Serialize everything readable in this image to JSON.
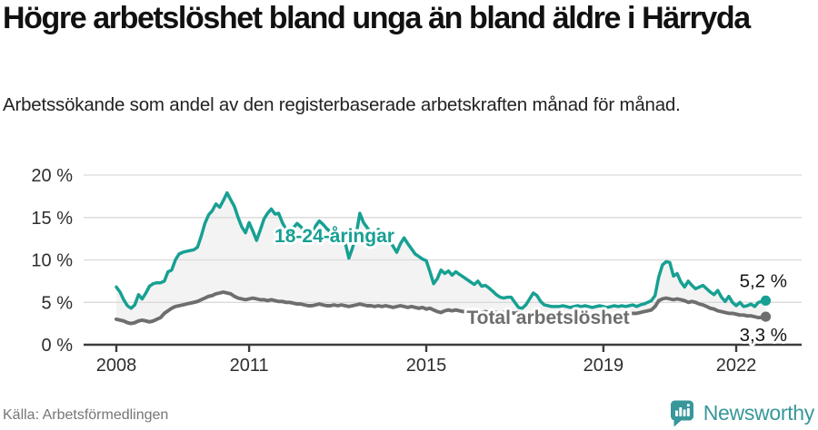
{
  "header": {
    "title": "Högre arbetslöshet bland unga än bland äldre i Härryda",
    "subtitle": "Arbetssökande som andel av den registerbaserade arbetskraften månad för månad."
  },
  "footer": {
    "source": "Källa: Arbetsförmedlingen",
    "brand": "Newsworthy",
    "logo_icon": "newsworthy-speech-bubble-bar-chart-icon"
  },
  "colors": {
    "young_line": "#17a093",
    "total_line": "#6e6e6e",
    "area_fill": "#f3f3f3",
    "grid": "#dadada",
    "axis": "#3d3d3d",
    "tick_text": "#2e2e2e",
    "value_text": "#141414",
    "brand": "#38979a"
  },
  "chart_data": {
    "type": "line",
    "title": "Högre arbetslöshet bland unga än bland äldre i Härryda",
    "subtitle": "Arbetssökande som andel av den registerbaserade arbetskraften månad för månad.",
    "frequency": "monthly",
    "x_start": "2008-01",
    "x_end": "2022-09",
    "x_tick_labels": [
      "2008",
      "2011",
      "2015",
      "2019",
      "2022"
    ],
    "x_tick_month_index": [
      0,
      36,
      84,
      132,
      168
    ],
    "y_tick_labels": [
      "0 %",
      "5 %",
      "10 %",
      "15 %",
      "20 %"
    ],
    "y_tick_values": [
      0,
      5,
      10,
      15,
      20
    ],
    "ylim": [
      0,
      20
    ],
    "unit": "%",
    "grid": "horizontal",
    "legend_position": "inline-labels",
    "series": [
      {
        "name": "18-24-åringar",
        "color_key": "young_line",
        "end_label": "5,2 %",
        "end_value": 5.2,
        "values": [
          6.8,
          6.2,
          5.3,
          4.6,
          4.3,
          4.7,
          5.9,
          5.4,
          6.1,
          6.9,
          7.2,
          7.3,
          7.3,
          7.5,
          8.6,
          8.8,
          10.0,
          10.7,
          10.9,
          11.0,
          11.1,
          11.2,
          11.5,
          12.8,
          14.3,
          15.3,
          15.8,
          16.6,
          16.2,
          17.0,
          17.9,
          17.1,
          16.3,
          15.0,
          13.9,
          13.2,
          14.4,
          13.4,
          12.3,
          13.5,
          14.8,
          15.5,
          16.0,
          15.4,
          15.5,
          14.4,
          13.6,
          13.3,
          13.8,
          14.3,
          13.9,
          13.4,
          12.9,
          12.5,
          14.0,
          14.6,
          14.2,
          13.7,
          13.3,
          13.6,
          13.4,
          12.9,
          12.1,
          10.2,
          11.4,
          13.0,
          15.5,
          14.4,
          13.8,
          13.2,
          12.9,
          13.6,
          13.2,
          12.6,
          12.4,
          11.6,
          10.9,
          11.9,
          12.6,
          11.9,
          11.3,
          10.7,
          10.4,
          10.1,
          9.9,
          8.6,
          7.2,
          7.8,
          8.8,
          8.4,
          8.7,
          8.2,
          8.6,
          8.3,
          8.0,
          7.7,
          7.4,
          7.1,
          7.5,
          6.9,
          7.0,
          6.7,
          6.3,
          5.9,
          5.6,
          5.5,
          5.6,
          5.6,
          5.0,
          4.4,
          4.3,
          4.7,
          5.4,
          6.1,
          5.8,
          5.1,
          4.7,
          4.6,
          4.5,
          4.5,
          4.5,
          4.6,
          4.5,
          4.4,
          4.5,
          4.6,
          4.5,
          4.6,
          4.5,
          4.4,
          4.5,
          4.6,
          4.5,
          4.4,
          4.5,
          4.6,
          4.5,
          4.6,
          4.5,
          4.6,
          4.7,
          4.5,
          4.7,
          4.8,
          5.0,
          5.2,
          5.8,
          8.0,
          9.4,
          9.8,
          9.7,
          8.1,
          8.4,
          7.4,
          6.8,
          7.5,
          7.0,
          6.6,
          6.8,
          7.0,
          6.6,
          6.2,
          5.9,
          6.4,
          5.6,
          5.1,
          5.7,
          5.0,
          4.6,
          5.0,
          4.5,
          4.6,
          4.8,
          4.5,
          5.0,
          5.1,
          5.2
        ]
      },
      {
        "name": "Total arbetslöshet",
        "color_key": "total_line",
        "end_label": "3,3 %",
        "end_value": 3.3,
        "values": [
          3.0,
          2.9,
          2.8,
          2.6,
          2.5,
          2.6,
          2.8,
          2.9,
          2.8,
          2.7,
          2.8,
          3.0,
          3.2,
          3.7,
          4.0,
          4.3,
          4.5,
          4.6,
          4.7,
          4.8,
          4.9,
          5.0,
          5.1,
          5.3,
          5.5,
          5.7,
          5.8,
          6.0,
          6.1,
          6.2,
          6.1,
          6.0,
          5.7,
          5.5,
          5.4,
          5.3,
          5.4,
          5.5,
          5.4,
          5.3,
          5.3,
          5.2,
          5.3,
          5.2,
          5.1,
          5.1,
          5.0,
          5.0,
          4.9,
          4.8,
          4.8,
          4.7,
          4.6,
          4.6,
          4.7,
          4.8,
          4.7,
          4.6,
          4.6,
          4.7,
          4.6,
          4.7,
          4.6,
          4.5,
          4.6,
          4.7,
          4.8,
          4.7,
          4.6,
          4.6,
          4.5,
          4.6,
          4.5,
          4.6,
          4.5,
          4.4,
          4.5,
          4.6,
          4.5,
          4.4,
          4.5,
          4.4,
          4.3,
          4.4,
          4.2,
          4.3,
          4.1,
          3.9,
          3.8,
          4.0,
          4.1,
          4.0,
          4.1,
          4.0,
          3.9,
          4.0,
          3.9,
          4.0,
          3.9,
          3.8,
          3.9,
          3.8,
          3.9,
          3.8,
          3.7,
          3.8,
          3.7,
          3.8,
          3.7,
          3.8,
          3.7,
          3.6,
          3.7,
          3.6,
          3.7,
          3.6,
          3.5,
          3.6,
          3.5,
          3.6,
          3.5,
          3.6,
          3.5,
          3.4,
          3.5,
          3.4,
          3.5,
          3.4,
          3.5,
          3.4,
          3.5,
          3.4,
          3.5,
          3.4,
          3.5,
          3.4,
          3.5,
          3.6,
          3.5,
          3.6,
          3.7,
          3.7,
          3.8,
          3.9,
          4.0,
          4.1,
          4.5,
          5.2,
          5.4,
          5.5,
          5.4,
          5.3,
          5.4,
          5.3,
          5.2,
          5.0,
          5.1,
          5.0,
          4.8,
          4.7,
          4.5,
          4.3,
          4.2,
          4.0,
          3.9,
          3.8,
          3.7,
          3.7,
          3.6,
          3.5,
          3.5,
          3.4,
          3.4,
          3.3,
          3.2,
          3.2,
          3.3
        ]
      }
    ]
  }
}
